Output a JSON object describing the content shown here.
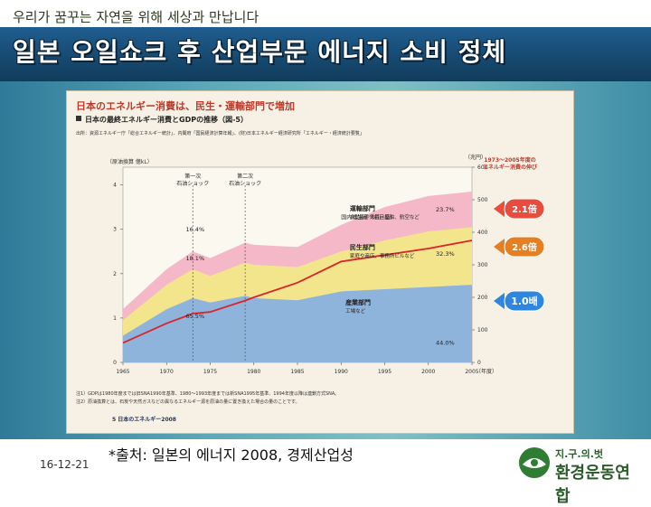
{
  "slide": {
    "tagline": "우리가 꿈꾸는 자연을 위해 세상과 만납니다",
    "title": "일본 오일쇼크 후 산업부문 에너지 소비 정체",
    "date": "16-12-21",
    "source": "*출처: 일본의 에너지 2008, 경제산업성",
    "logo_line1": "지.구.의.벗",
    "logo_line2": "환경운동연합"
  },
  "chart_data": {
    "type": "area",
    "title": "日本のエネルギー消費は、民生・運輸部門で増加",
    "subtitle": "日本の最終エネルギー消費とGDPの推移（図-5）",
    "source_note": "出所：資源エネルギー庁「総合エネルギー統計」、内閣府「国民経済計算年報」、(財)日本エネルギー経済研究所「エネルギー・経済統計要覧」",
    "ylabel_left": "（原油換算 億kL）",
    "ylabel_right": "（兆円）",
    "xlabel_unit": "（年度）",
    "x": [
      1965,
      1970,
      1973,
      1975,
      1979,
      1980,
      1985,
      1990,
      1995,
      2000,
      2005
    ],
    "x_ticks": [
      "1965",
      "1970",
      "1975",
      "1980",
      "1985",
      "1990",
      "1995",
      "2000",
      "2005"
    ],
    "ylim_left": [
      0,
      4.4
    ],
    "yticks_left": [
      "0",
      "1",
      "2",
      "3",
      "4"
    ],
    "ylim_right": [
      0,
      600
    ],
    "yticks_right": [
      "0",
      "100",
      "200",
      "300",
      "400",
      "500",
      "600"
    ],
    "series": [
      {
        "name": "産業部門",
        "sub": "工場など",
        "color": "#8fb4dc",
        "values": [
          0.6,
          1.2,
          1.45,
          1.35,
          1.5,
          1.45,
          1.4,
          1.6,
          1.65,
          1.7,
          1.75
        ]
      },
      {
        "name": "民生部門",
        "sub": "家庭や商店、事務所ビルなど",
        "color": "#f3e58c",
        "values": [
          0.95,
          1.75,
          2.1,
          1.95,
          2.25,
          2.2,
          2.15,
          2.5,
          2.75,
          2.95,
          3.05
        ]
      },
      {
        "name": "運輸部門",
        "sub": "自動車や鉄道、船舶、航空など",
        "color": "#f4b8c8",
        "values": [
          1.2,
          2.1,
          2.5,
          2.35,
          2.7,
          2.65,
          2.6,
          3.1,
          3.5,
          3.75,
          3.85
        ]
      }
    ],
    "gdp": {
      "name": "国内総生産（右目盛）",
      "color": "#d9242b",
      "values": [
        60,
        120,
        150,
        155,
        190,
        200,
        245,
        310,
        330,
        350,
        375
      ]
    },
    "annotations": {
      "oil_shock_1": "第一次\n石油ショック",
      "oil_shock_2": "第二次\n石油ショック",
      "pct_1973": [
        "16.4%",
        "18.1%",
        "65.5%"
      ],
      "pct_2005": [
        "23.7%",
        "32.3%",
        "44.0%"
      ],
      "growth_title": "1973〜2005年度の\nエネルギー消費の伸び",
      "growth": [
        "2.1倍",
        "2.6倍",
        "1.0배"
      ]
    },
    "notes": [
      "注1）GDPは1980年度までは旧SNA1990年基準、1980〜1993年度までは新SNA1995年基準、1994年度以降は連鎖方式SNA。",
      "注2）原油換算とは、石炭や天然ガスなどの異なるエネルギー源を原油の量に置き換えた場合の量のことです。"
    ],
    "page_footer": "5  日本のエネルギー2008"
  }
}
